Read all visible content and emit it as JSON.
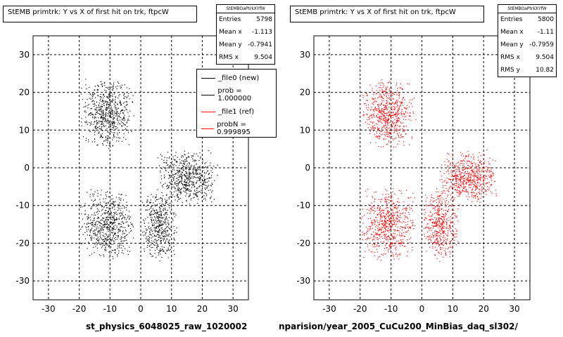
{
  "colors": {
    "left_points": "#000000",
    "right_points": "#ff0000",
    "grid": "#000000"
  },
  "panels": [
    {
      "title": "StEMB primtrk: Y vs X of first hit on trk, ftpcW",
      "stats": {
        "header": "StEMBOaPtrkXYfW",
        "rows": [
          {
            "label": "Entries",
            "value": "5798"
          },
          {
            "label": "Mean x",
            "value": "-1.113"
          },
          {
            "label": "Mean y",
            "value": "-0.7941"
          },
          {
            "label": "RMS x",
            "value": "9.504"
          }
        ]
      },
      "legend": [
        {
          "label": "_file0 (new)",
          "color": "#000000"
        },
        {
          "label": "prob = 1.000000",
          "color": "#000000"
        },
        {
          "label": "_file1 (ref)",
          "color": "#ff0000"
        },
        {
          "label": "probN = 0.999895",
          "color": "#ff0000"
        }
      ],
      "x_caption": "st_physics_6048025_raw_1020002"
    },
    {
      "title": "StEMB primtrk: Y vs X of first hit on trk, ftpcW",
      "stats": {
        "header": "StEMBOaPtrkXYfW",
        "rows": [
          {
            "label": "Entries",
            "value": "5800"
          },
          {
            "label": "Mean x",
            "value": "-1.11"
          },
          {
            "label": "Mean y",
            "value": "-0.7959"
          },
          {
            "label": "RMS x",
            "value": "9.504"
          },
          {
            "label": "RMS y",
            "value": "10.82"
          }
        ]
      },
      "x_caption": "nparision/year_2005_CuCu200_MinBias_daq_sl302/"
    }
  ],
  "chart_data": [
    {
      "type": "scatter",
      "title": "StEMB primtrk: Y vs X of first hit on trk, ftpcW",
      "xlabel": "st_physics_6048025_raw_1020002",
      "ylabel": "",
      "xlim": [
        -35,
        35
      ],
      "ylim": [
        -35,
        35
      ],
      "xticks": [
        -30,
        -20,
        -10,
        0,
        10,
        20,
        30
      ],
      "yticks": [
        -30,
        -20,
        -10,
        0,
        10,
        20,
        30
      ],
      "grid": true,
      "series": [
        {
          "name": "_file0 (new)",
          "color": "#000000",
          "entries": 5798
        }
      ],
      "clusters": [
        {
          "x": [
            -20,
            -2
          ],
          "y": [
            5,
            24
          ]
        },
        {
          "x": [
            -20,
            -2
          ],
          "y": [
            -25,
            -5
          ]
        },
        {
          "x": [
            0,
            12
          ],
          "y": [
            -25,
            -5
          ]
        },
        {
          "x": [
            5,
            25
          ],
          "y": [
            -10,
            5
          ]
        }
      ]
    },
    {
      "type": "scatter",
      "title": "StEMB primtrk: Y vs X of first hit on trk, ftpcW",
      "xlabel": "nparision/year_2005_CuCu200_MinBias_daq_sl302/",
      "ylabel": "",
      "xlim": [
        -35,
        35
      ],
      "ylim": [
        -35,
        35
      ],
      "xticks": [
        -30,
        -20,
        -10,
        0,
        10,
        20,
        30
      ],
      "yticks": [
        -30,
        -20,
        -10,
        0,
        10,
        20,
        30
      ],
      "grid": true,
      "series": [
        {
          "name": "_file1 (ref)",
          "color": "#ff0000",
          "entries": 5800
        }
      ],
      "clusters": [
        {
          "x": [
            -20,
            -2
          ],
          "y": [
            5,
            24
          ]
        },
        {
          "x": [
            -20,
            -2
          ],
          "y": [
            -25,
            -5
          ]
        },
        {
          "x": [
            0,
            12
          ],
          "y": [
            -25,
            -5
          ]
        },
        {
          "x": [
            5,
            25
          ],
          "y": [
            -10,
            5
          ]
        }
      ]
    }
  ]
}
